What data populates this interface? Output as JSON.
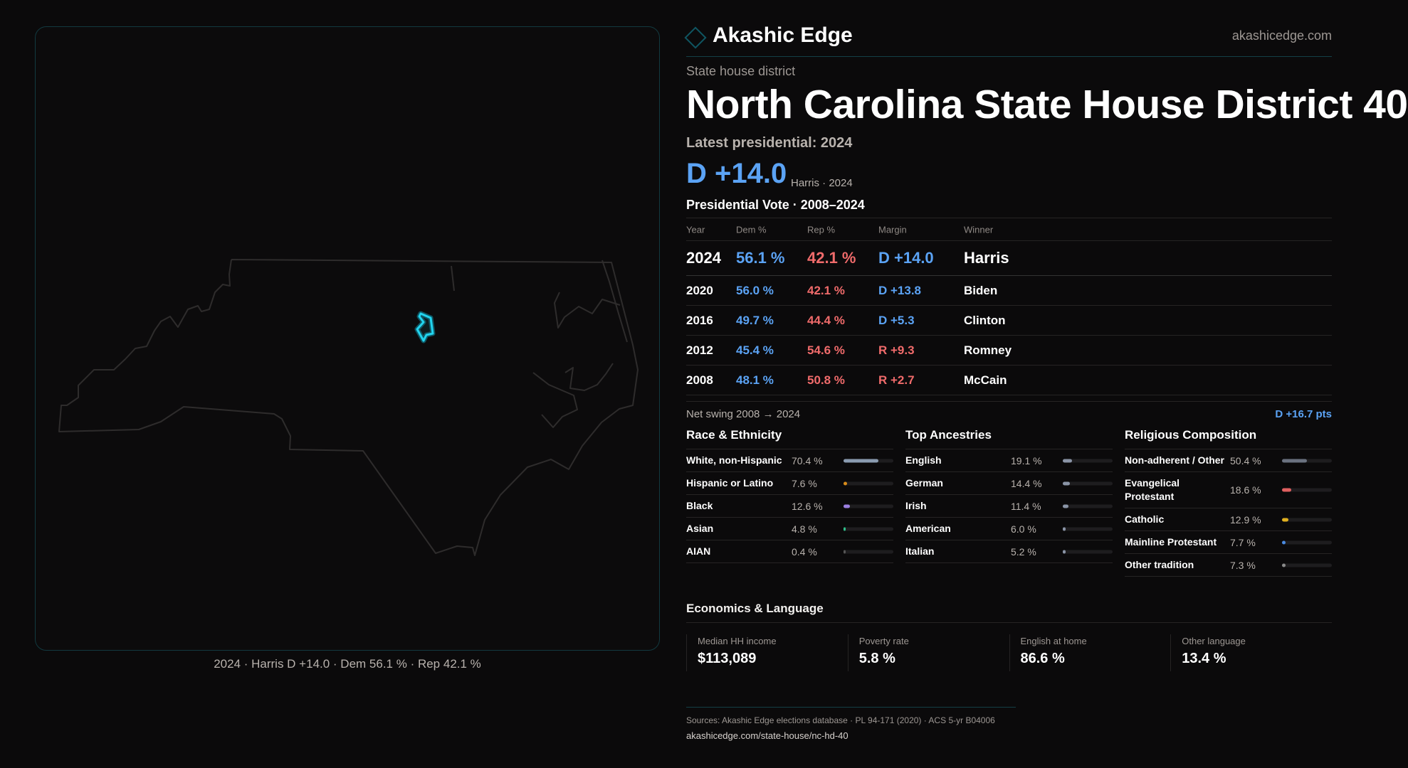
{
  "map": {
    "caption": "2024 · Harris D +14.0 · Dem 56.1 % · Rep 42.1 %",
    "highlight_color": "#22d3ee"
  },
  "header": {
    "brand": "Akashic Edge",
    "site": "akashicedge.com"
  },
  "kicker": "State house district",
  "title": "North Carolina State House District 40",
  "latest_label": "Latest presidential: 2024",
  "latest_margin": "D +14.0",
  "latest_sub": "Harris · 2024",
  "vote_title": "Presidential Vote · 2008–2024",
  "table": {
    "headers": [
      "Year",
      "Dem %",
      "Rep %",
      "Margin",
      "Winner"
    ],
    "rows": [
      {
        "year": "2024",
        "dem": "56.1 %",
        "rep": "42.1 %",
        "margin": "D +14.0",
        "party": "D",
        "winner": "Harris"
      },
      {
        "year": "2020",
        "dem": "56.0 %",
        "rep": "42.1 %",
        "margin": "D +13.8",
        "party": "D",
        "winner": "Biden"
      },
      {
        "year": "2016",
        "dem": "49.7 %",
        "rep": "44.4 %",
        "margin": "D +5.3",
        "party": "D",
        "winner": "Clinton"
      },
      {
        "year": "2012",
        "dem": "45.4 %",
        "rep": "54.6 %",
        "margin": "R +9.3",
        "party": "R",
        "winner": "Romney"
      },
      {
        "year": "2008",
        "dem": "48.1 %",
        "rep": "50.8 %",
        "margin": "R +2.7",
        "party": "R",
        "winner": "McCain"
      }
    ]
  },
  "swing": {
    "label": "Net swing 2008 → 2024",
    "value": "D +16.7 pts"
  },
  "sections": [
    {
      "title": "Race & Ethnicity",
      "items": [
        {
          "label": "White, non-Hispanic",
          "value": "70.4 %",
          "pct": 70.4,
          "color": "#8a9bb0"
        },
        {
          "label": "Hispanic or Latino",
          "value": "7.6 %",
          "pct": 7.6,
          "color": "#d98c1a"
        },
        {
          "label": "Black",
          "value": "12.6 %",
          "pct": 12.6,
          "color": "#9b7fe0"
        },
        {
          "label": "Asian",
          "value": "4.8 %",
          "pct": 4.8,
          "color": "#2fbf8a"
        },
        {
          "label": "AIAN",
          "value": "0.4 %",
          "pct": 0.4,
          "color": "#555"
        }
      ]
    },
    {
      "title": "Top Ancestries",
      "items": [
        {
          "label": "English",
          "value": "19.1 %",
          "pct": 19.1,
          "color": "#8a94a6"
        },
        {
          "label": "German",
          "value": "14.4 %",
          "pct": 14.4,
          "color": "#8a94a6"
        },
        {
          "label": "Irish",
          "value": "11.4 %",
          "pct": 11.4,
          "color": "#8a94a6"
        },
        {
          "label": "American",
          "value": "6.0 %",
          "pct": 6.0,
          "color": "#8a94a6"
        },
        {
          "label": "Italian",
          "value": "5.2 %",
          "pct": 5.2,
          "color": "#8a94a6"
        }
      ]
    },
    {
      "title": "Religious Composition",
      "items": [
        {
          "label": "Non-adherent / Other",
          "value": "50.4 %",
          "pct": 50.4,
          "color": "#6b7280"
        },
        {
          "label": "Evangelical Protestant",
          "value": "18.6 %",
          "pct": 18.6,
          "color": "#e06060"
        },
        {
          "label": "Catholic",
          "value": "12.9 %",
          "pct": 12.9,
          "color": "#e0b020"
        },
        {
          "label": "Mainline Protestant",
          "value": "7.7 %",
          "pct": 7.7,
          "color": "#4a8ae0"
        },
        {
          "label": "Other tradition",
          "value": "7.3 %",
          "pct": 7.3,
          "color": "#8a8a8a"
        }
      ]
    }
  ],
  "economics": {
    "title": "Economics & Language",
    "cards": [
      {
        "label": "Median HH income",
        "value": "$113,089"
      },
      {
        "label": "Poverty rate",
        "value": "5.8 %"
      },
      {
        "label": "English at home",
        "value": "86.6 %"
      },
      {
        "label": "Other language",
        "value": "13.4 %"
      }
    ]
  },
  "footer": {
    "sources": "Sources: Akashic Edge elections database · PL 94-171 (2020) · ACS 5-yr B04006",
    "url": "akashicedge.com/state-house/nc-hd-40"
  }
}
